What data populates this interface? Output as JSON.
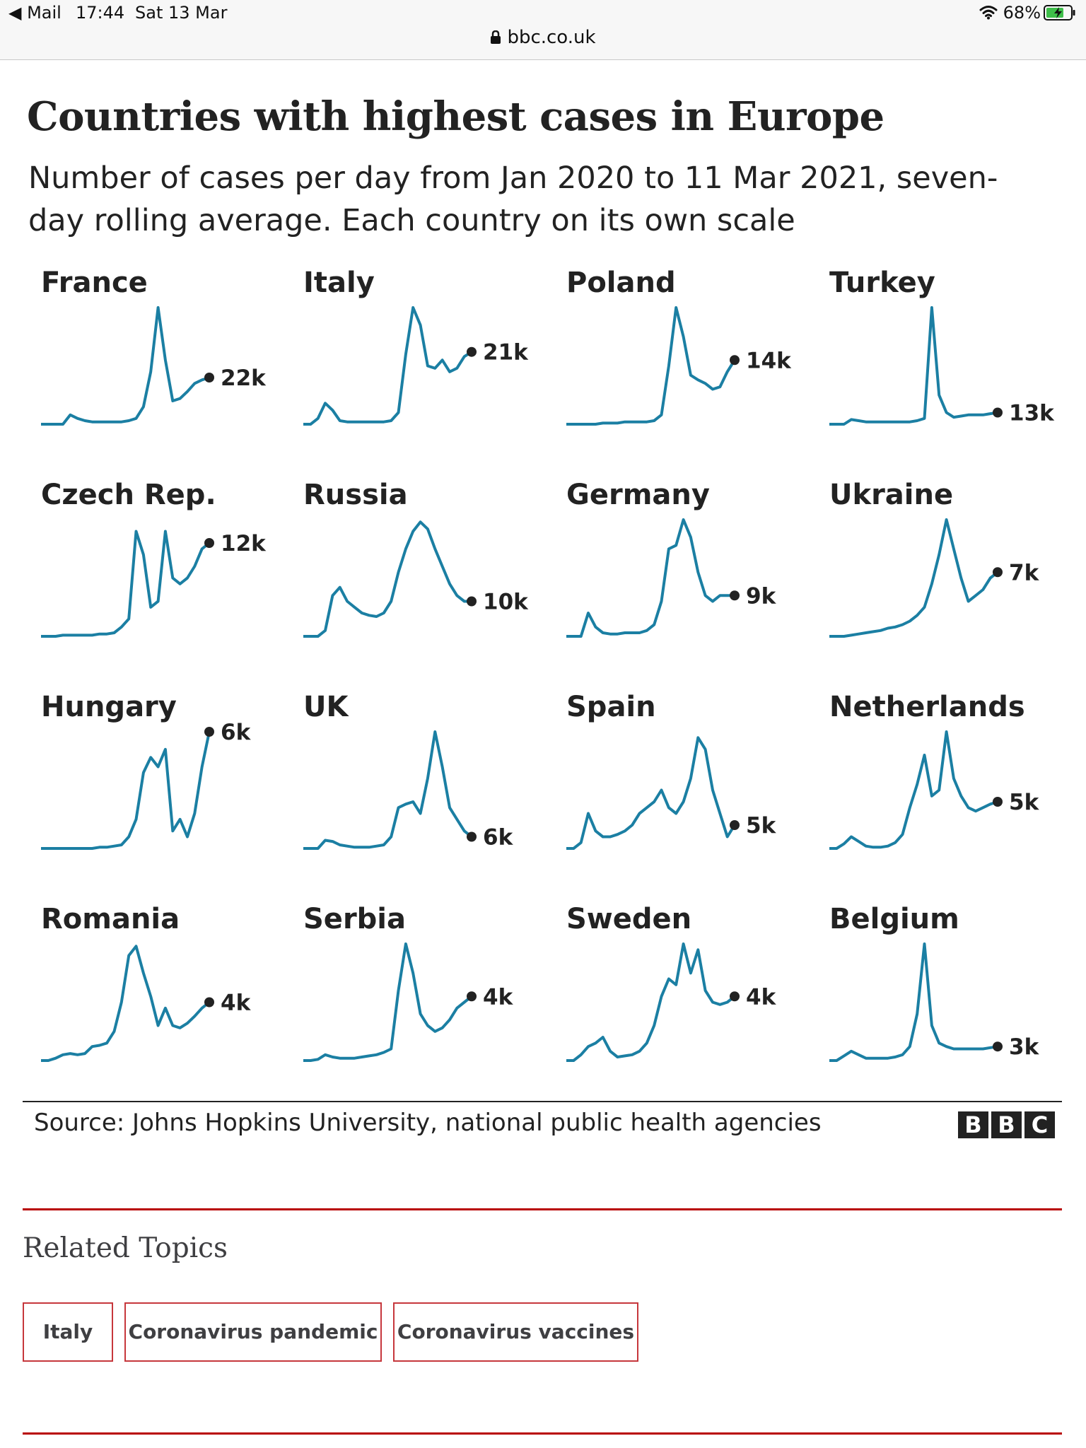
{
  "status_bar": {
    "back_label": "◀ Mail",
    "time": "17:44",
    "date": "Sat 13 Mar",
    "battery": "68%",
    "url": "bbc.co.uk",
    "icons": [
      "wifi-icon",
      "battery-charging-icon",
      "lock-icon"
    ]
  },
  "chart": {
    "title": "Countries with highest cases in Europe",
    "subtitle": "Number of cases per day from Jan 2020 to 11 Mar 2021, seven-day rolling average. Each country on its own scale",
    "source": "Source: Johns Hopkins University, national public health agencies",
    "logo": [
      "B",
      "B",
      "C"
    ],
    "line_color": "#1b7fa3",
    "dot_color": "#222222"
  },
  "chart_data": {
    "type": "line",
    "title": "Countries with highest cases in Europe",
    "subtitle": "Number of cases per day from Jan 2020 to 11 Mar 2021, seven-day rolling average. Each country on its own scale",
    "x_range": [
      "Jan 2020",
      "11 Mar 2021"
    ],
    "note": "small multiples; each panel normalised to its own peak (1.0)",
    "series": [
      {
        "name": "France",
        "end_label": "22k",
        "values": [
          0,
          0,
          0,
          0,
          0.08,
          0.05,
          0.03,
          0.02,
          0.02,
          0.02,
          0.02,
          0.02,
          0.03,
          0.05,
          0.15,
          0.45,
          1.0,
          0.55,
          0.2,
          0.22,
          0.28,
          0.35,
          0.38,
          0.4
        ]
      },
      {
        "name": "Italy",
        "end_label": "21k",
        "values": [
          0,
          0,
          0.05,
          0.18,
          0.12,
          0.03,
          0.02,
          0.02,
          0.02,
          0.02,
          0.02,
          0.02,
          0.03,
          0.1,
          0.6,
          1.0,
          0.85,
          0.5,
          0.48,
          0.55,
          0.45,
          0.48,
          0.58,
          0.62
        ]
      },
      {
        "name": "Poland",
        "end_label": "14k",
        "values": [
          0,
          0,
          0,
          0,
          0,
          0.01,
          0.01,
          0.01,
          0.02,
          0.02,
          0.02,
          0.02,
          0.03,
          0.08,
          0.5,
          1.0,
          0.75,
          0.42,
          0.38,
          0.35,
          0.3,
          0.32,
          0.45,
          0.55
        ]
      },
      {
        "name": "Turkey",
        "end_label": "13k",
        "values": [
          0,
          0,
          0,
          0.04,
          0.03,
          0.02,
          0.02,
          0.02,
          0.02,
          0.02,
          0.02,
          0.02,
          0.03,
          0.05,
          1.0,
          0.25,
          0.1,
          0.06,
          0.07,
          0.08,
          0.08,
          0.08,
          0.09,
          0.1
        ]
      },
      {
        "name": "Czech Rep.",
        "end_label": "12k",
        "values": [
          0,
          0,
          0,
          0.01,
          0.01,
          0.01,
          0.01,
          0.01,
          0.02,
          0.02,
          0.03,
          0.08,
          0.15,
          0.9,
          0.7,
          0.25,
          0.3,
          0.9,
          0.5,
          0.45,
          0.5,
          0.6,
          0.75,
          0.8
        ]
      },
      {
        "name": "Russia",
        "end_label": "10k",
        "values": [
          0,
          0,
          0,
          0.05,
          0.35,
          0.42,
          0.3,
          0.25,
          0.2,
          0.18,
          0.17,
          0.2,
          0.3,
          0.55,
          0.75,
          0.9,
          0.98,
          0.92,
          0.75,
          0.6,
          0.45,
          0.35,
          0.3,
          0.3
        ]
      },
      {
        "name": "Germany",
        "end_label": "9k",
        "values": [
          0,
          0,
          0,
          0.2,
          0.08,
          0.03,
          0.02,
          0.02,
          0.03,
          0.03,
          0.03,
          0.05,
          0.1,
          0.3,
          0.75,
          0.78,
          1.0,
          0.85,
          0.55,
          0.35,
          0.3,
          0.35,
          0.35,
          0.35
        ]
      },
      {
        "name": "Ukraine",
        "end_label": "7k",
        "values": [
          0,
          0,
          0,
          0.01,
          0.02,
          0.03,
          0.04,
          0.05,
          0.07,
          0.08,
          0.1,
          0.13,
          0.18,
          0.25,
          0.45,
          0.7,
          1.0,
          0.75,
          0.5,
          0.3,
          0.35,
          0.4,
          0.5,
          0.55
        ]
      },
      {
        "name": "Hungary",
        "end_label": "6k",
        "values": [
          0,
          0,
          0,
          0,
          0,
          0,
          0,
          0,
          0.01,
          0.01,
          0.02,
          0.03,
          0.1,
          0.25,
          0.65,
          0.78,
          0.7,
          0.85,
          0.15,
          0.25,
          0.1,
          0.3,
          0.7,
          1.0
        ]
      },
      {
        "name": "UK",
        "end_label": "6k",
        "values": [
          0,
          0,
          0,
          0.07,
          0.06,
          0.03,
          0.02,
          0.01,
          0.01,
          0.01,
          0.02,
          0.03,
          0.1,
          0.35,
          0.38,
          0.4,
          0.3,
          0.6,
          1.0,
          0.7,
          0.35,
          0.25,
          0.15,
          0.1
        ]
      },
      {
        "name": "Spain",
        "end_label": "5k",
        "values": [
          0,
          0,
          0.05,
          0.3,
          0.15,
          0.1,
          0.1,
          0.12,
          0.15,
          0.2,
          0.3,
          0.35,
          0.4,
          0.5,
          0.35,
          0.3,
          0.4,
          0.6,
          0.95,
          0.85,
          0.5,
          0.3,
          0.1,
          0.2
        ]
      },
      {
        "name": "Netherlands",
        "end_label": "5k",
        "values": [
          0,
          0,
          0.04,
          0.1,
          0.06,
          0.02,
          0.01,
          0.01,
          0.02,
          0.05,
          0.12,
          0.35,
          0.55,
          0.8,
          0.45,
          0.5,
          1.0,
          0.6,
          0.45,
          0.35,
          0.32,
          0.35,
          0.38,
          0.4
        ]
      },
      {
        "name": "Romania",
        "end_label": "4k",
        "values": [
          0,
          0,
          0.02,
          0.05,
          0.06,
          0.05,
          0.06,
          0.12,
          0.13,
          0.15,
          0.25,
          0.5,
          0.9,
          0.98,
          0.75,
          0.55,
          0.3,
          0.45,
          0.3,
          0.28,
          0.32,
          0.38,
          0.45,
          0.5
        ]
      },
      {
        "name": "Serbia",
        "end_label": "4k",
        "values": [
          0,
          0,
          0.01,
          0.05,
          0.03,
          0.02,
          0.02,
          0.02,
          0.03,
          0.04,
          0.05,
          0.07,
          0.1,
          0.6,
          1.0,
          0.75,
          0.4,
          0.3,
          0.25,
          0.28,
          0.35,
          0.45,
          0.5,
          0.55
        ]
      },
      {
        "name": "Sweden",
        "end_label": "4k",
        "values": [
          0,
          0,
          0.05,
          0.12,
          0.15,
          0.2,
          0.08,
          0.03,
          0.04,
          0.05,
          0.08,
          0.15,
          0.3,
          0.55,
          0.7,
          0.65,
          1.0,
          0.75,
          0.95,
          0.6,
          0.5,
          0.48,
          0.5,
          0.55
        ]
      },
      {
        "name": "Belgium",
        "end_label": "3k",
        "values": [
          0,
          0,
          0.04,
          0.08,
          0.05,
          0.02,
          0.02,
          0.02,
          0.02,
          0.03,
          0.05,
          0.12,
          0.4,
          1.0,
          0.3,
          0.15,
          0.12,
          0.1,
          0.1,
          0.1,
          0.1,
          0.1,
          0.11,
          0.12
        ]
      }
    ]
  },
  "related": {
    "heading": "Related Topics",
    "topics": [
      "Italy",
      "Coronavirus pandemic",
      "Coronavirus vaccines"
    ]
  }
}
